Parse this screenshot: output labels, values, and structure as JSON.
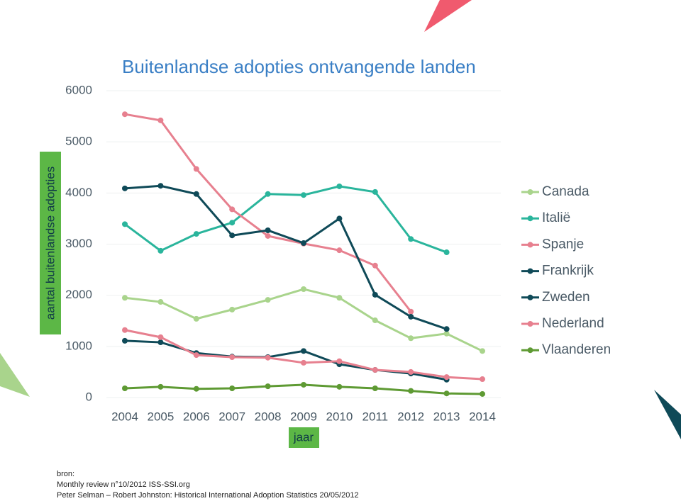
{
  "chart_data": {
    "type": "line",
    "title": "Buitenlandse adopties ontvangende landen",
    "y_label": "aantal buitenlandse adopties",
    "x_label": "jaar",
    "categories": [
      "2004",
      "2005",
      "2006",
      "2007",
      "2008",
      "2009",
      "2010",
      "2011",
      "2012",
      "2013",
      "2014"
    ],
    "ylim": [
      0,
      6000
    ],
    "yticks": [
      0,
      1000,
      2000,
      3000,
      4000,
      5000,
      6000
    ],
    "grid": true,
    "legend": "right",
    "series": [
      {
        "name": "Canada",
        "color": "#a9d48c",
        "values": [
          1950,
          1870,
          1540,
          1720,
          1910,
          2120,
          1950,
          1510,
          1160,
          1250,
          910
        ]
      },
      {
        "name": "Italië",
        "color": "#2ab59c",
        "values": [
          3390,
          2870,
          3200,
          3420,
          3980,
          3960,
          4130,
          4020,
          3100,
          2840,
          null
        ]
      },
      {
        "name": "Spanje",
        "color": "#e7808f",
        "values": [
          5540,
          5420,
          4470,
          3680,
          3160,
          3010,
          2880,
          2580,
          1680,
          null,
          null
        ]
      },
      {
        "name": "Frankrijk",
        "color": "#0f4a58",
        "values": [
          4090,
          4140,
          3980,
          3170,
          3270,
          3020,
          3500,
          2010,
          1580,
          1340,
          null
        ]
      },
      {
        "name": "Zweden",
        "color": "#0f4a58",
        "values": [
          1110,
          1080,
          870,
          800,
          790,
          910,
          650,
          540,
          470,
          350,
          null
        ]
      },
      {
        "name": "Nederland",
        "color": "#e7808f",
        "values": [
          1320,
          1180,
          830,
          790,
          780,
          680,
          710,
          540,
          500,
          400,
          360
        ]
      },
      {
        "name": "Vlaanderen",
        "color": "#5e9a33",
        "values": [
          180,
          210,
          170,
          180,
          220,
          250,
          210,
          180,
          130,
          80,
          70
        ]
      }
    ]
  },
  "source": {
    "heading": "bron:",
    "lines": [
      "Monthly review n°10/2012 ISS-SSI.org",
      "Peter Selman – Robert Johnston: Historical International Adoption Statistics 20/05/2012"
    ]
  }
}
